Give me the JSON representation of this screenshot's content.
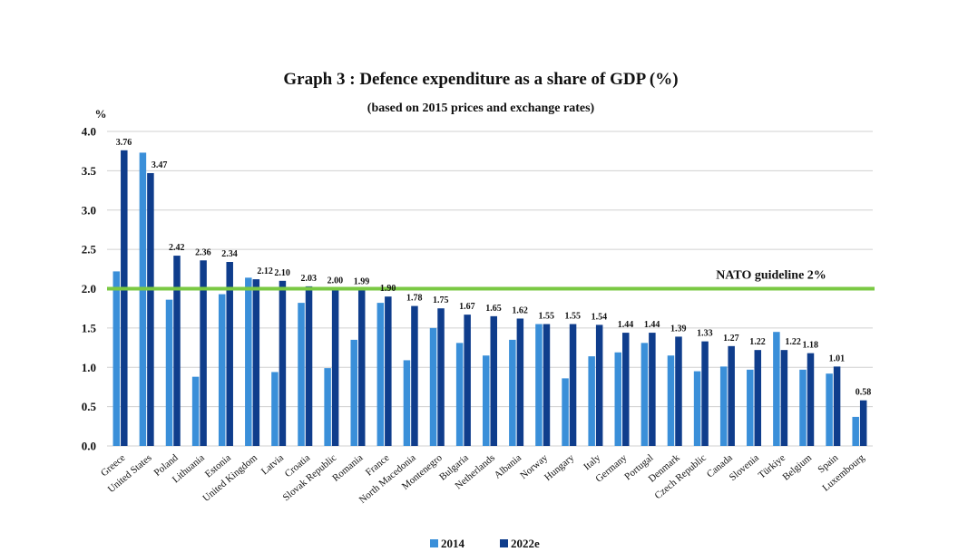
{
  "chart_data": {
    "type": "bar",
    "title": "Graph 3 : Defence expenditure as a share of GDP (%)",
    "subtitle": "(based on 2015 prices and exchange rates)",
    "ylabel": "%",
    "ylim": [
      0,
      4
    ],
    "yticks": [
      "0.0",
      "0.5",
      "1.0",
      "1.5",
      "2.0",
      "2.5",
      "3.0",
      "3.5",
      "4.0"
    ],
    "grid": true,
    "categories": [
      "Greece",
      "United States",
      "Poland",
      "Lithuania",
      "Estonia",
      "United Kingdom",
      "Latvia",
      "Croatia",
      "Slovak Republic",
      "Romania",
      "France",
      "North Macedonia",
      "Montenegro",
      "Bulgaria",
      "Netherlands",
      "Albania",
      "Norway",
      "Hungary",
      "Italy",
      "Germany",
      "Portugal",
      "Denmark",
      "Czech Republic",
      "Canada",
      "Slovenia",
      "Türkiye",
      "Belgium",
      "Spain",
      "Luxembourg"
    ],
    "series": [
      {
        "name": "2014",
        "color": "#3a8fd9",
        "values": [
          2.22,
          3.73,
          1.86,
          0.88,
          1.93,
          2.14,
          0.94,
          1.82,
          0.99,
          1.35,
          1.82,
          1.09,
          1.5,
          1.31,
          1.15,
          1.35,
          1.55,
          0.86,
          1.14,
          1.19,
          1.31,
          1.15,
          0.95,
          1.01,
          0.97,
          1.45,
          0.97,
          0.92,
          0.37
        ]
      },
      {
        "name": "2022e",
        "color": "#0f3d8c",
        "values": [
          3.76,
          3.47,
          2.42,
          2.36,
          2.34,
          2.12,
          2.1,
          2.03,
          2.0,
          1.99,
          1.9,
          1.78,
          1.75,
          1.67,
          1.65,
          1.62,
          1.55,
          1.55,
          1.54,
          1.44,
          1.44,
          1.39,
          1.33,
          1.27,
          1.22,
          1.22,
          1.18,
          1.01,
          0.58
        ],
        "labels": [
          "3.76",
          "3.47",
          "2.42",
          "2.36",
          "2.34",
          "2.12",
          "2.10",
          "2.03",
          "2.00",
          "1.99",
          "1.90",
          "1.78",
          "1.75",
          "1.67",
          "1.65",
          "1.62",
          "1.55",
          "1.55",
          "1.54",
          "1.44",
          "1.44",
          "1.39",
          "1.33",
          "1.27",
          "1.22",
          "1.22",
          "1.18",
          "1.01",
          "0.58"
        ]
      }
    ],
    "guideline": {
      "value": 2.0,
      "label": "NATO guideline 2%",
      "color": "#7ac943"
    },
    "legend": {
      "position": "bottom-center"
    }
  }
}
